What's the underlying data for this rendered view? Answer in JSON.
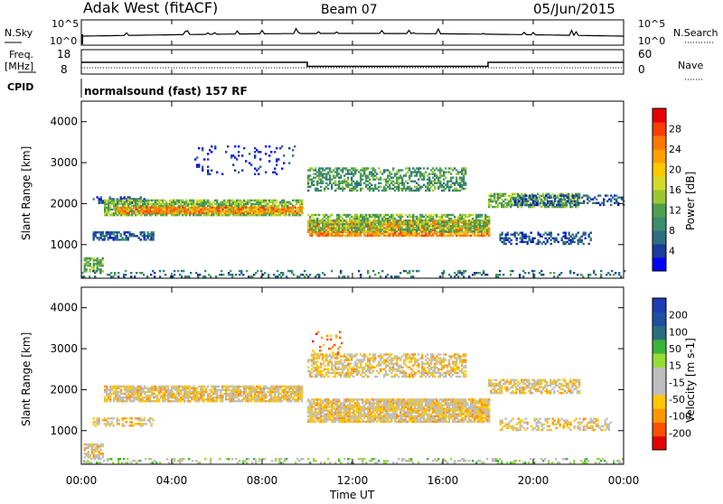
{
  "header": {
    "station": "Adak West (fitACF)",
    "beam": "Beam 07",
    "date": "05/Jun/2015"
  },
  "top_panels": {
    "sky_label": "N.Sky",
    "search_label": "N.Search",
    "left_tick_high": "10^5",
    "left_tick_low": "10^0",
    "right_tick_high": "10^5",
    "right_tick_low": "10^0",
    "freq_label": "Freq.",
    "freq_unit": "[MHz]",
    "freq_tick_high": "18",
    "freq_tick_low": "8",
    "nave_label": "Nave",
    "nave_tick_high": "60",
    "nave_tick_low": "0",
    "cpid_label": "CPID",
    "cpid_value": "normalsound (fast) 157 RF"
  },
  "colors": {
    "power": [
      "#0000ff",
      "#1a3c9b",
      "#2e6e82",
      "#3c8c6e",
      "#50a050",
      "#9bc832",
      "#d2dc28",
      "#ffc800",
      "#ffa000",
      "#ff7800",
      "#ff3c00",
      "#e60000"
    ],
    "velocity": [
      "#e60000",
      "#ff5000",
      "#ff9600",
      "#ffc800",
      "#bebebe",
      "#bebebe",
      "#96dc32",
      "#3cb43c",
      "#2a6e82",
      "#1e50a0",
      "#1e3cb4"
    ],
    "ground_scatter": "#bebebe"
  },
  "chart_data": [
    {
      "type": "heatmap",
      "name": "power",
      "ylabel": "Slant Range [km]",
      "colorbar_label": "Power [dB]",
      "colorbar_ticks": [
        "4",
        "8",
        "12",
        "16",
        "20",
        "24",
        "28"
      ],
      "ylim": [
        180,
        4500
      ],
      "y_ticks": [
        "1000",
        "2000",
        "3000",
        "4000"
      ],
      "y_tick_values": [
        1000,
        2000,
        3000,
        4000
      ],
      "bands": [
        {
          "t0": 0.1,
          "t1": 0.9,
          "r0": 330,
          "r1": 660,
          "level": 5,
          "density": 0.7
        },
        {
          "t0": 0.5,
          "t1": 3.2,
          "r0": 1100,
          "r1": 1300,
          "level": 2,
          "density": 0.6
        },
        {
          "t0": 0.5,
          "t1": 2.8,
          "r0": 2000,
          "r1": 2150,
          "level": 2,
          "density": 0.5
        },
        {
          "t0": 1.0,
          "t1": 9.8,
          "r0": 1700,
          "r1": 2100,
          "level": 5,
          "density": 0.8
        },
        {
          "t0": 1.5,
          "t1": 9.8,
          "r0": 1750,
          "r1": 1900,
          "level": 9,
          "density": 0.7
        },
        {
          "t0": 10.0,
          "t1": 18.0,
          "r0": 1200,
          "r1": 1600,
          "level": 9,
          "density": 0.85
        },
        {
          "t0": 10.0,
          "t1": 18.0,
          "r0": 1300,
          "r1": 1750,
          "level": 5,
          "density": 0.6
        },
        {
          "t0": 10.0,
          "t1": 17.0,
          "r0": 2300,
          "r1": 2850,
          "level": 4,
          "density": 0.5
        },
        {
          "t0": 5.0,
          "t1": 9.5,
          "r0": 2700,
          "r1": 3400,
          "level": 1,
          "density": 0.08
        },
        {
          "t0": 18.0,
          "t1": 22.0,
          "r0": 1900,
          "r1": 2250,
          "level": 5,
          "density": 0.65
        },
        {
          "t0": 18.5,
          "t1": 22.5,
          "r0": 1000,
          "r1": 1300,
          "level": 2,
          "density": 0.45
        },
        {
          "t0": 19.0,
          "t1": 24.0,
          "r0": 1950,
          "r1": 2200,
          "level": 2,
          "density": 0.35
        },
        {
          "t0": 0.0,
          "t1": 24.0,
          "r0": 200,
          "r1": 350,
          "level": 3,
          "density": 0.2
        }
      ]
    },
    {
      "type": "heatmap",
      "name": "velocity",
      "ylabel": "Slant Range [km]",
      "colorbar_label": "Velocity [m s-1]",
      "colorbar_ticks": [
        "-200",
        "-100",
        "-50",
        "-15",
        "15",
        "50",
        "100",
        "200"
      ],
      "ylim": [
        180,
        4500
      ],
      "y_ticks": [
        "1000",
        "2000",
        "3000",
        "4000"
      ],
      "y_tick_values": [
        1000,
        2000,
        3000,
        4000
      ],
      "bands": [
        {
          "t0": 0.1,
          "t1": 0.9,
          "r0": 330,
          "r1": 660,
          "level": 4,
          "density": 0.7
        },
        {
          "t0": 0.5,
          "t1": 3.2,
          "r0": 1100,
          "r1": 1300,
          "level": 4,
          "density": 0.5
        },
        {
          "t0": 1.0,
          "t1": 9.8,
          "r0": 1700,
          "r1": 2100,
          "level": 4,
          "density": 0.8
        },
        {
          "t0": 10.0,
          "t1": 18.0,
          "r0": 1200,
          "r1": 1750,
          "level": 4,
          "density": 0.85
        },
        {
          "t0": 10.0,
          "t1": 17.0,
          "r0": 2300,
          "r1": 2850,
          "level": 4,
          "density": 0.55
        },
        {
          "t0": 18.0,
          "t1": 22.0,
          "r0": 1900,
          "r1": 2250,
          "level": 4,
          "density": 0.6
        },
        {
          "t0": 18.5,
          "t1": 23.5,
          "r0": 1000,
          "r1": 1300,
          "level": 4,
          "density": 0.4
        },
        {
          "t0": 10.2,
          "t1": 11.5,
          "r0": 2800,
          "r1": 3400,
          "level": 2,
          "density": 0.15
        },
        {
          "t0": 0.0,
          "t1": 24.0,
          "r0": 200,
          "r1": 330,
          "level": 6,
          "density": 0.25
        }
      ]
    }
  ],
  "time_axis": {
    "ticks": [
      "00:00",
      "04:00",
      "08:00",
      "12:00",
      "16:00",
      "20:00",
      "00:00"
    ],
    "label": "Time UT",
    "xlim": [
      0,
      24
    ]
  },
  "freq_series": {
    "segments": [
      {
        "t0": 0,
        "t1": 10,
        "mhz": 13.0
      },
      {
        "t0": 10,
        "t1": 18,
        "mhz": 10.5
      },
      {
        "t0": 18,
        "t1": 24,
        "mhz": 13.0
      }
    ],
    "nave": 10
  }
}
